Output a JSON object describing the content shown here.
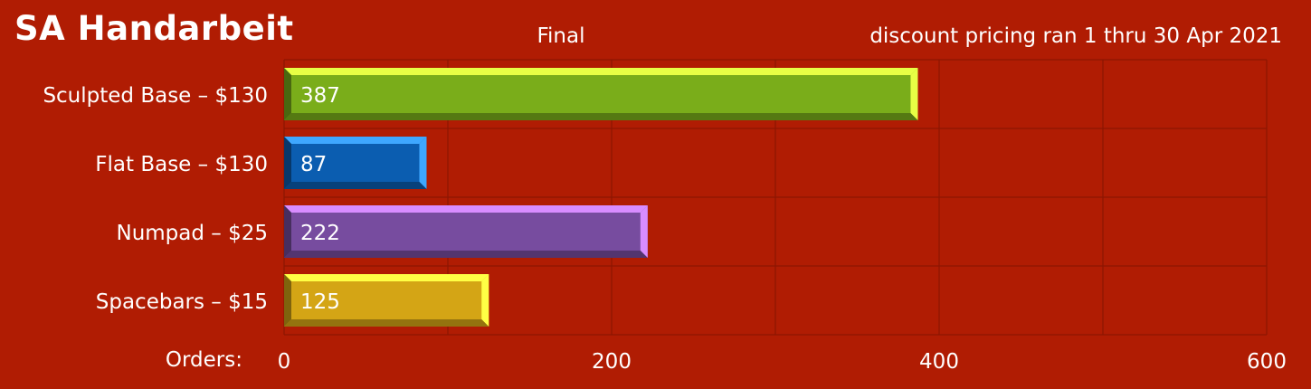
{
  "header": {
    "title": "SA Handarbeit",
    "subtitle": "Final",
    "note": "discount pricing ran 1 thru 30 Apr 2021"
  },
  "chart_data": {
    "type": "bar",
    "orientation": "horizontal",
    "categories": [
      "Sculpted Base – $130",
      "Flat Base – $130",
      "Numpad – $25",
      "Spacebars – $15"
    ],
    "values": [
      387,
      87,
      222,
      125
    ],
    "colors": [
      "#7aad1a",
      "#0b5db0",
      "#774c9f",
      "#d4a515"
    ],
    "xlabel": "Orders:",
    "xlim": [
      0,
      600
    ],
    "xticks": [
      0,
      200,
      400,
      600
    ],
    "grid": true
  }
}
